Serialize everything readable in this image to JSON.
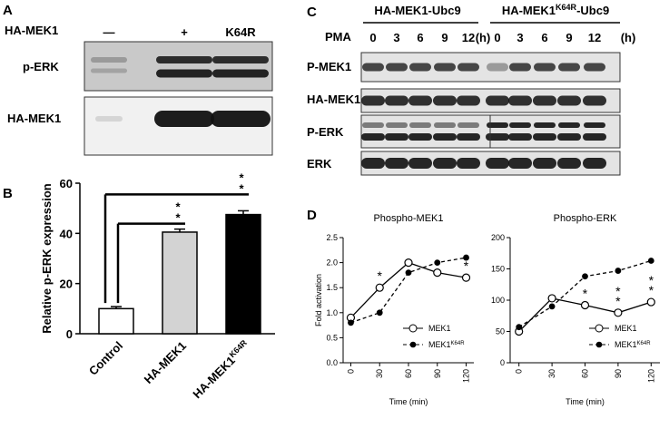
{
  "panel_labels": [
    "A",
    "B",
    "C",
    "D"
  ],
  "panel_a": {
    "row_header": "HA-MEK1",
    "lanes": [
      "—",
      "+",
      "K64R"
    ],
    "blots": [
      "p-ERK",
      "HA-MEK1"
    ]
  },
  "panel_c": {
    "groups": [
      {
        "pre": "HA-MEK1-Ubc9"
      },
      {
        "pre": "HA-MEK1",
        "sup": "K64R",
        "post": "-Ubc9"
      }
    ],
    "treatment": "PMA",
    "times": [
      0,
      3,
      6,
      9,
      12
    ],
    "unit": "(h)",
    "blots": [
      "P-MEK1",
      "HA-MEK1",
      "P-ERK",
      "ERK"
    ]
  },
  "chart_data": [
    {
      "type": "bar",
      "ylabel": "Relative p-ERK expression",
      "categories": [
        "Control",
        "HA-MEK1",
        "HA-MEK1"
      ],
      "category_superscripts": [
        null,
        null,
        "K64R"
      ],
      "values": [
        10,
        40.5,
        47.5
      ],
      "errors": [
        0.8,
        1.2,
        1.5
      ],
      "colors": [
        "#ffffff",
        "#d3d3d3",
        "#000000"
      ],
      "ylim": [
        0,
        60
      ],
      "yticks": [
        0,
        20,
        40,
        60
      ],
      "annotations": [
        {
          "between": [
            0,
            1
          ],
          "lines": [
            "*",
            "*"
          ]
        },
        {
          "between": [
            0,
            2
          ],
          "lines": [
            "*",
            "*"
          ]
        }
      ]
    },
    {
      "type": "line",
      "title": "Phospho-MEK1",
      "xlabel": "Time (min)",
      "ylabel": "Fold activation",
      "x": [
        0,
        30,
        60,
        90,
        120
      ],
      "xlim": [
        -8,
        128
      ],
      "xticks": [
        0,
        30,
        60,
        90,
        120
      ],
      "ylim": [
        0,
        2.5
      ],
      "yticks": [
        {
          "value": 0,
          "label": "0.0"
        },
        0.5,
        {
          "value": 1,
          "label": "1.0"
        },
        1.5,
        {
          "value": 2,
          "label": "2.0"
        },
        2.5
      ],
      "legend": "lower right",
      "series": [
        {
          "name": "MEK1",
          "color": "#000000",
          "marker": "open",
          "dashed": false,
          "values": [
            0.9,
            1.5,
            2.0,
            1.8,
            1.7
          ]
        },
        {
          "name": "MEK1",
          "name_sup": "K64R",
          "color": "#000000",
          "marker": "filled",
          "dashed": true,
          "values": [
            0.8,
            1.0,
            1.8,
            2.0,
            2.1
          ]
        }
      ],
      "annotations": [
        {
          "x": 30,
          "lines": [
            "*"
          ]
        },
        {
          "x": 120,
          "lines": [
            "*"
          ]
        }
      ]
    },
    {
      "type": "line",
      "title": "Phospho-ERK",
      "xlabel": "Time (min)",
      "x": [
        0,
        30,
        60,
        90,
        120
      ],
      "xlim": [
        -8,
        128
      ],
      "xticks": [
        0,
        30,
        60,
        90,
        120
      ],
      "ylim": [
        0,
        200
      ],
      "yticks": [
        0,
        50,
        100,
        150,
        200
      ],
      "legend": "lower right",
      "series": [
        {
          "name": "MEK1",
          "color": "#000000",
          "marker": "open",
          "dashed": false,
          "values": [
            50,
            103,
            92,
            80,
            97
          ]
        },
        {
          "name": "MEK1",
          "name_sup": "K64R",
          "color": "#000000",
          "marker": "filled",
          "dashed": true,
          "values": [
            57,
            90,
            138,
            147,
            163
          ]
        }
      ],
      "annotations": [
        {
          "x": 60,
          "lines": [
            "*"
          ]
        },
        {
          "x": 90,
          "lines": [
            "*",
            "*"
          ]
        },
        {
          "x": 120,
          "lines": [
            "*",
            "*"
          ]
        }
      ]
    }
  ]
}
